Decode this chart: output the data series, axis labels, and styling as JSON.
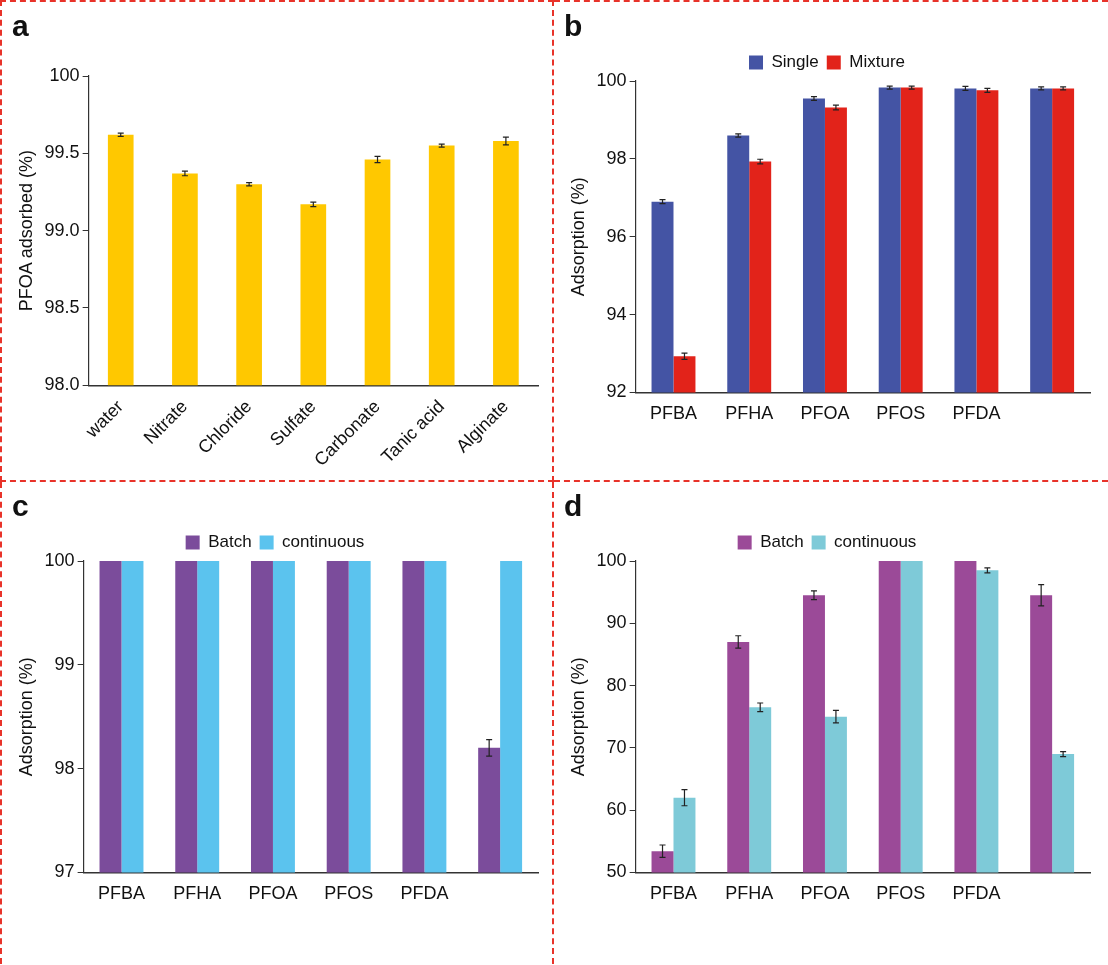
{
  "chart_data": [
    {
      "type": "bar",
      "title": "a",
      "ylabel": "PFOA adsorbed (%)",
      "categories": [
        "water",
        "Nitrate",
        "Chloride",
        "Sulfate",
        "Carbonate",
        "Tanic acid",
        "Alginate"
      ],
      "series": [
        {
          "color": "#ffc800",
          "values": [
            99.62,
            99.37,
            99.3,
            99.17,
            99.46,
            99.55,
            99.58
          ],
          "errors": [
            0.01,
            0.015,
            0.01,
            0.015,
            0.02,
            0.01,
            0.025
          ]
        }
      ],
      "ylim": [
        98,
        100
      ],
      "yticks": [
        {
          "value": 98,
          "label": "98.0"
        },
        {
          "value": 98.5,
          "label": "98.5"
        },
        {
          "value": 99,
          "label": "99.0"
        },
        {
          "value": 99.5,
          "label": "99.5"
        },
        100
      ]
    },
    {
      "type": "bar",
      "title": "b",
      "ylabel": "Adsorption (%)",
      "legend": "top",
      "categories": [
        "PFBA",
        "PFHA",
        "PFOA",
        "PFOS",
        "PFDA",
        null
      ],
      "series": [
        {
          "name": "Single",
          "color": "#4454a4",
          "values": [
            96.9,
            98.6,
            99.55,
            99.83,
            99.81,
            99.81
          ],
          "errors": [
            0.05,
            0.04,
            0.05,
            0.04,
            0.05,
            0.04
          ]
        },
        {
          "name": "Mixture",
          "color": "#e2231a",
          "values": [
            92.93,
            97.93,
            99.32,
            99.83,
            99.76,
            99.81
          ],
          "errors": [
            0.08,
            0.06,
            0.06,
            0.04,
            0.05,
            0.04
          ]
        }
      ],
      "ylim": [
        92,
        100
      ],
      "yticks": [
        92,
        94,
        96,
        98,
        100
      ]
    },
    {
      "type": "bar",
      "title": "c",
      "ylabel": "Adsorption (%)",
      "legend": "top",
      "categories": [
        "PFBA",
        "PFHA",
        "PFOA",
        "PFOS",
        "PFDA",
        null
      ],
      "series": [
        {
          "name": "Batch",
          "color": "#7b4c9b",
          "values": [
            100,
            100,
            100,
            100,
            100,
            98.2
          ],
          "errors": [
            null,
            null,
            null,
            null,
            null,
            0.08
          ]
        },
        {
          "name": "continuous",
          "color": "#5bc3ee",
          "values": [
            100,
            100,
            100,
            100,
            100,
            100
          ]
        }
      ],
      "ylim": [
        97,
        100
      ],
      "yticks": [
        97,
        98,
        99,
        100
      ]
    },
    {
      "type": "bar",
      "title": "d",
      "ylabel": "Adsorption (%)",
      "legend": "top",
      "categories": [
        "PFBA",
        "PFHA",
        "PFOA",
        "PFOS",
        "PFDA",
        null
      ],
      "series": [
        {
          "name": "Batch",
          "color": "#9b4a98",
          "values": [
            53.4,
            87,
            94.5,
            100,
            100,
            94.5
          ],
          "errors": [
            1,
            1,
            0.7,
            null,
            null,
            1.7
          ]
        },
        {
          "name": "continuous",
          "color": "#7ecad8",
          "values": [
            62,
            76.5,
            75,
            100,
            98.5,
            69
          ],
          "errors": [
            1.3,
            0.7,
            1,
            null,
            0.4,
            0.4
          ]
        }
      ],
      "ylim": [
        50,
        100
      ],
      "yticks": [
        50,
        60,
        70,
        80,
        90,
        100
      ]
    }
  ]
}
